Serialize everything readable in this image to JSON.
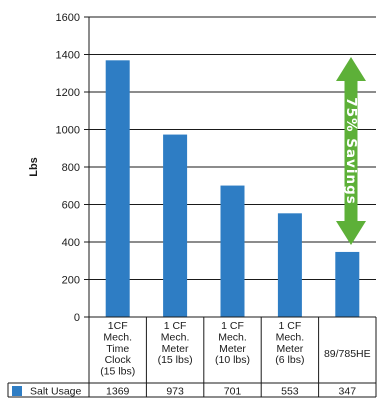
{
  "chart_data": {
    "type": "bar",
    "ylabel": "Lbs",
    "ylim": [
      0,
      1600
    ],
    "yticks": [
      "0",
      "200",
      "400",
      "600",
      "800",
      "1000",
      "1200",
      "1400",
      "1600"
    ],
    "categories": [
      [
        "1CF",
        "Mech.",
        "Time",
        "Clock",
        "(15 lbs)"
      ],
      [
        "1 CF",
        "Mech.",
        "Meter",
        "(15 lbs)"
      ],
      [
        "1 CF",
        "Mech.",
        "Meter",
        "(10 lbs)"
      ],
      [
        "1 CF",
        "Mech.",
        "Meter",
        "(6 lbs)"
      ],
      [
        "89/785HE"
      ]
    ],
    "series": [
      {
        "name": "Salt Usage",
        "values": [
          1369,
          973,
          701,
          553,
          347
        ]
      }
    ],
    "value_labels": [
      "1369",
      "973",
      "701",
      "553",
      "347"
    ],
    "bar_color": "#2e7dc4",
    "annotation": {
      "text": "75% Savings",
      "color": "#5db038"
    },
    "legend": "data-table-below",
    "grid": true
  }
}
